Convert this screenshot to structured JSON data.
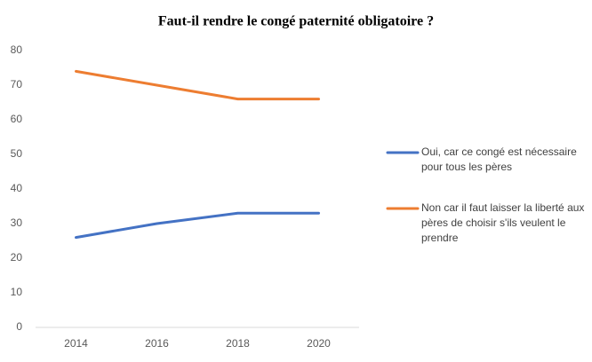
{
  "chart_data": {
    "type": "line",
    "title": "Faut-il rendre le congé paternité obligatoire ?",
    "categories": [
      "2014",
      "2016",
      "2018",
      "2020"
    ],
    "series": [
      {
        "name": "Oui, car ce congé est nécessaire pour tous les pères",
        "color": "#4472c4",
        "values": [
          26,
          30,
          33,
          33
        ]
      },
      {
        "name": "Non car il faut laisser la liberté aux pères de choisir s'ils veulent le prendre",
        "color": "#ed7d31",
        "values": [
          74,
          70,
          66,
          66
        ]
      }
    ],
    "ylim": [
      0,
      80
    ],
    "yticks": [
      0,
      10,
      20,
      30,
      40,
      50,
      60,
      70,
      80
    ],
    "grid": false,
    "legend": "right"
  }
}
